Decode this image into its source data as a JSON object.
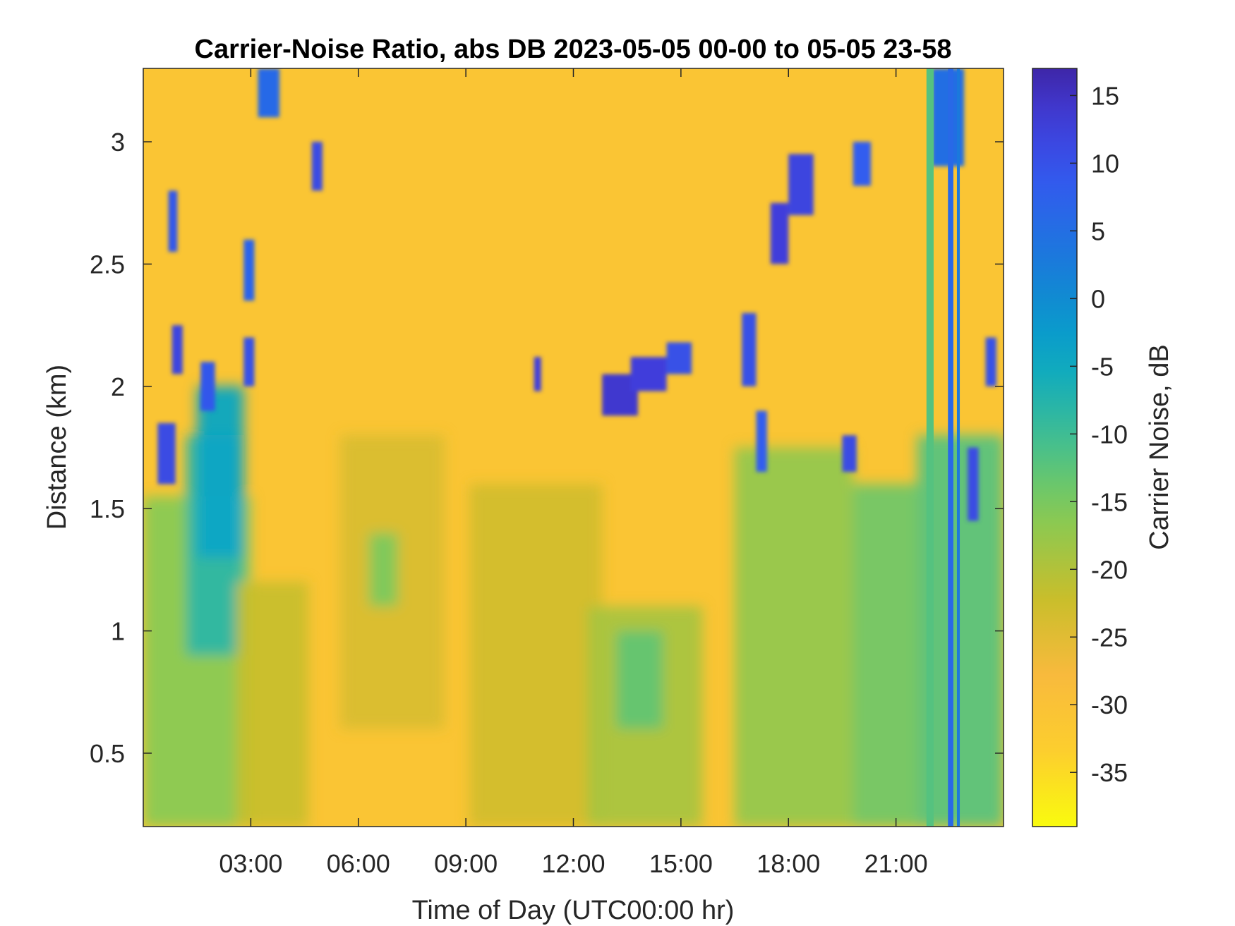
{
  "chart_data": {
    "type": "heatmap",
    "title": "Carrier-Noise Ratio, abs DB 2023-05-05 00-00 to 05-05 23-58",
    "xlabel": "Time of Day (UTC00:00 hr)",
    "ylabel": "Distance (km)",
    "colorbar_label": "Carrier Noise, dB",
    "colormap": "parula (reversed: high = dark blue, low = yellow)",
    "xlim_hours": [
      0,
      24
    ],
    "ylim_km": [
      0.2,
      3.3
    ],
    "clim_db": [
      -39,
      17
    ],
    "x_ticks": [
      {
        "value": 3,
        "label": "03:00"
      },
      {
        "value": 6,
        "label": "06:00"
      },
      {
        "value": 9,
        "label": "09:00"
      },
      {
        "value": 12,
        "label": "12:00"
      },
      {
        "value": 15,
        "label": "15:00"
      },
      {
        "value": 18,
        "label": "18:00"
      },
      {
        "value": 21,
        "label": "21:00"
      }
    ],
    "y_ticks": [
      {
        "value": 0.5,
        "label": "0.5"
      },
      {
        "value": 1,
        "label": "1"
      },
      {
        "value": 1.5,
        "label": "1.5"
      },
      {
        "value": 2,
        "label": "2"
      },
      {
        "value": 2.5,
        "label": "2.5"
      },
      {
        "value": 3,
        "label": "3"
      }
    ],
    "colorbar_ticks": [
      {
        "value": 15,
        "label": "15"
      },
      {
        "value": 10,
        "label": "10"
      },
      {
        "value": 5,
        "label": "5"
      },
      {
        "value": 0,
        "label": "0"
      },
      {
        "value": -5,
        "label": "-5"
      },
      {
        "value": -10,
        "label": "-10"
      },
      {
        "value": -15,
        "label": "-15"
      },
      {
        "value": -20,
        "label": "-20"
      },
      {
        "value": -25,
        "label": "-25"
      },
      {
        "value": -30,
        "label": "-30"
      },
      {
        "value": -35,
        "label": "-35"
      }
    ],
    "background_level_db": -31,
    "regions": [
      {
        "x0": 0.0,
        "x1": 3.0,
        "y0": 0.2,
        "y1": 1.55,
        "value": -16
      },
      {
        "x0": 1.2,
        "x1": 2.8,
        "y0": 0.9,
        "y1": 1.8,
        "value": -8
      },
      {
        "x0": 1.5,
        "x1": 2.8,
        "y0": 1.3,
        "y1": 2.0,
        "value": -4
      },
      {
        "x0": 2.6,
        "x1": 4.6,
        "y0": 0.2,
        "y1": 1.2,
        "value": -22
      },
      {
        "x0": 5.5,
        "x1": 8.4,
        "y0": 0.6,
        "y1": 1.8,
        "value": -24
      },
      {
        "x0": 6.3,
        "x1": 7.1,
        "y0": 1.1,
        "y1": 1.4,
        "value": -15
      },
      {
        "x0": 9.1,
        "x1": 12.8,
        "y0": 0.2,
        "y1": 1.6,
        "value": -23
      },
      {
        "x0": 12.4,
        "x1": 15.6,
        "y0": 0.2,
        "y1": 1.1,
        "value": -19
      },
      {
        "x0": 13.2,
        "x1": 14.5,
        "y0": 0.6,
        "y1": 1.0,
        "value": -13
      },
      {
        "x0": 16.5,
        "x1": 19.8,
        "y0": 0.2,
        "y1": 1.75,
        "value": -17
      },
      {
        "x0": 19.8,
        "x1": 21.6,
        "y0": 0.2,
        "y1": 1.6,
        "value": -14
      },
      {
        "x0": 21.6,
        "x1": 24.0,
        "y0": 0.2,
        "y1": 1.8,
        "value": -12
      }
    ],
    "patches": [
      {
        "x0": 0.4,
        "x1": 0.9,
        "y0": 1.6,
        "y1": 1.85,
        "value": 11
      },
      {
        "x0": 1.6,
        "x1": 2.0,
        "y0": 1.9,
        "y1": 2.1,
        "value": 9
      },
      {
        "x0": 0.8,
        "x1": 1.1,
        "y0": 2.05,
        "y1": 2.25,
        "value": 12
      },
      {
        "x0": 0.7,
        "x1": 0.95,
        "y0": 2.55,
        "y1": 2.8,
        "value": 9
      },
      {
        "x0": 2.8,
        "x1": 3.1,
        "y0": 2.35,
        "y1": 2.6,
        "value": 7
      },
      {
        "x0": 2.8,
        "x1": 3.1,
        "y0": 2.0,
        "y1": 2.2,
        "value": 10
      },
      {
        "x0": 4.7,
        "x1": 5.0,
        "y0": 2.8,
        "y1": 3.0,
        "value": 11
      },
      {
        "x0": 3.2,
        "x1": 3.8,
        "y0": 3.1,
        "y1": 3.3,
        "value": 6
      },
      {
        "x0": 10.9,
        "x1": 11.1,
        "y0": 1.98,
        "y1": 2.12,
        "value": 13
      },
      {
        "x0": 12.8,
        "x1": 13.8,
        "y0": 1.88,
        "y1": 2.05,
        "value": 14
      },
      {
        "x0": 13.6,
        "x1": 14.6,
        "y0": 1.98,
        "y1": 2.12,
        "value": 13
      },
      {
        "x0": 14.6,
        "x1": 15.3,
        "y0": 2.05,
        "y1": 2.18,
        "value": 10
      },
      {
        "x0": 16.7,
        "x1": 17.1,
        "y0": 2.0,
        "y1": 2.3,
        "value": 10
      },
      {
        "x0": 17.1,
        "x1": 17.4,
        "y0": 1.65,
        "y1": 1.9,
        "value": 8
      },
      {
        "x0": 17.5,
        "x1": 18.0,
        "y0": 2.5,
        "y1": 2.75,
        "value": 13
      },
      {
        "x0": 18.0,
        "x1": 18.7,
        "y0": 2.7,
        "y1": 2.95,
        "value": 12
      },
      {
        "x0": 19.5,
        "x1": 19.9,
        "y0": 1.65,
        "y1": 1.8,
        "value": 11
      },
      {
        "x0": 19.8,
        "x1": 20.3,
        "y0": 2.82,
        "y1": 3.0,
        "value": 8
      },
      {
        "x0": 22.0,
        "x1": 22.9,
        "y0": 2.9,
        "y1": 3.3,
        "value": 5
      },
      {
        "x0": 23.0,
        "x1": 23.3,
        "y0": 1.45,
        "y1": 1.75,
        "value": 11
      },
      {
        "x0": 23.5,
        "x1": 23.8,
        "y0": 2.0,
        "y1": 2.2,
        "value": 10
      }
    ],
    "stripes": [
      {
        "x0": 21.85,
        "x1": 22.05,
        "y0": 0.2,
        "y1": 3.3,
        "value": -12
      },
      {
        "x0": 22.45,
        "x1": 22.6,
        "y0": 0.2,
        "y1": 3.3,
        "value": 6
      },
      {
        "x0": 22.7,
        "x1": 22.78,
        "y0": 0.2,
        "y1": 3.3,
        "value": 3
      }
    ]
  }
}
